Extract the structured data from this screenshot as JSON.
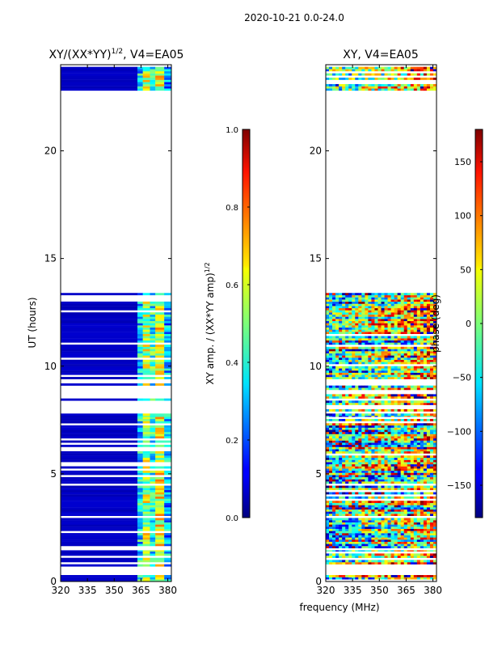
{
  "figure_title": "2020-10-21 0.0-24.0",
  "shared_xlabel": "frequency (MHz)",
  "chart_data": [
    {
      "type": "heatmap",
      "title_main": "XY/(XX*YY)",
      "title_exp": "1/2",
      "title_tail": ", V4=EA05",
      "xlabel": "",
      "ylabel": "UT (hours)",
      "xlim": [
        320,
        382
      ],
      "ylim": [
        0,
        24
      ],
      "xticks": [
        320,
        335,
        350,
        365,
        380
      ],
      "yticks": [
        0,
        5,
        10,
        15,
        20
      ],
      "colorbar": {
        "label_main": "XY amp. / (XX*YY amp)",
        "label_exp": "1/2",
        "range": [
          0.0,
          1.0
        ],
        "ticks": [
          "0.0",
          "0.2",
          "0.4",
          "0.6",
          "0.8",
          "1.0"
        ],
        "colormap": "jet"
      },
      "time_blocks": [
        {
          "start": 0.0,
          "end": 0.3,
          "state": "data"
        },
        {
          "start": 0.3,
          "end": 0.55,
          "state": "flagged"
        },
        {
          "start": 0.7,
          "end": 1.45,
          "state": "data"
        },
        {
          "start": 1.55,
          "end": 7.7,
          "state": "data"
        },
        {
          "start": 7.7,
          "end": 9.4,
          "state": "partial"
        },
        {
          "start": 9.4,
          "end": 13.4,
          "state": "data"
        },
        {
          "start": 13.4,
          "end": 22.8,
          "state": "flagged"
        },
        {
          "start": 22.8,
          "end": 23.9,
          "state": "data"
        }
      ],
      "channel_bands": [
        {
          "from": 320,
          "to": 363,
          "level": 0.05
        },
        {
          "from": 363,
          "to": 366,
          "level": 0.35
        },
        {
          "from": 366,
          "to": 370,
          "level": 0.55
        },
        {
          "from": 370,
          "to": 373,
          "level": 0.4
        },
        {
          "from": 373,
          "to": 378,
          "level": 0.6
        },
        {
          "from": 378,
          "to": 382,
          "level": 0.3
        }
      ]
    },
    {
      "type": "heatmap",
      "title_main": "XY, V4=EA05",
      "xlabel": "",
      "ylabel": "",
      "xlim": [
        320,
        382
      ],
      "ylim": [
        0,
        24
      ],
      "xticks": [
        320,
        335,
        350,
        365,
        380
      ],
      "yticks": [
        0,
        5,
        10,
        15,
        20
      ],
      "colorbar": {
        "label_main": "phase (deg)",
        "range": [
          -180,
          180
        ],
        "ticks": [
          "−150",
          "−100",
          "−50",
          "0",
          "50",
          "100",
          "150"
        ],
        "tick_values": [
          -150,
          -100,
          -50,
          0,
          50,
          100,
          150
        ],
        "colormap": "jet"
      },
      "time_blocks": [
        {
          "start": 0.0,
          "end": 0.3,
          "state": "data"
        },
        {
          "start": 0.3,
          "end": 0.55,
          "state": "flagged"
        },
        {
          "start": 0.7,
          "end": 1.45,
          "state": "data"
        },
        {
          "start": 1.55,
          "end": 7.7,
          "state": "data"
        },
        {
          "start": 7.7,
          "end": 9.4,
          "state": "partial"
        },
        {
          "start": 9.4,
          "end": 13.4,
          "state": "data"
        },
        {
          "start": 13.4,
          "end": 22.8,
          "state": "flagged"
        },
        {
          "start": 22.8,
          "end": 23.9,
          "state": "data"
        }
      ]
    }
  ]
}
